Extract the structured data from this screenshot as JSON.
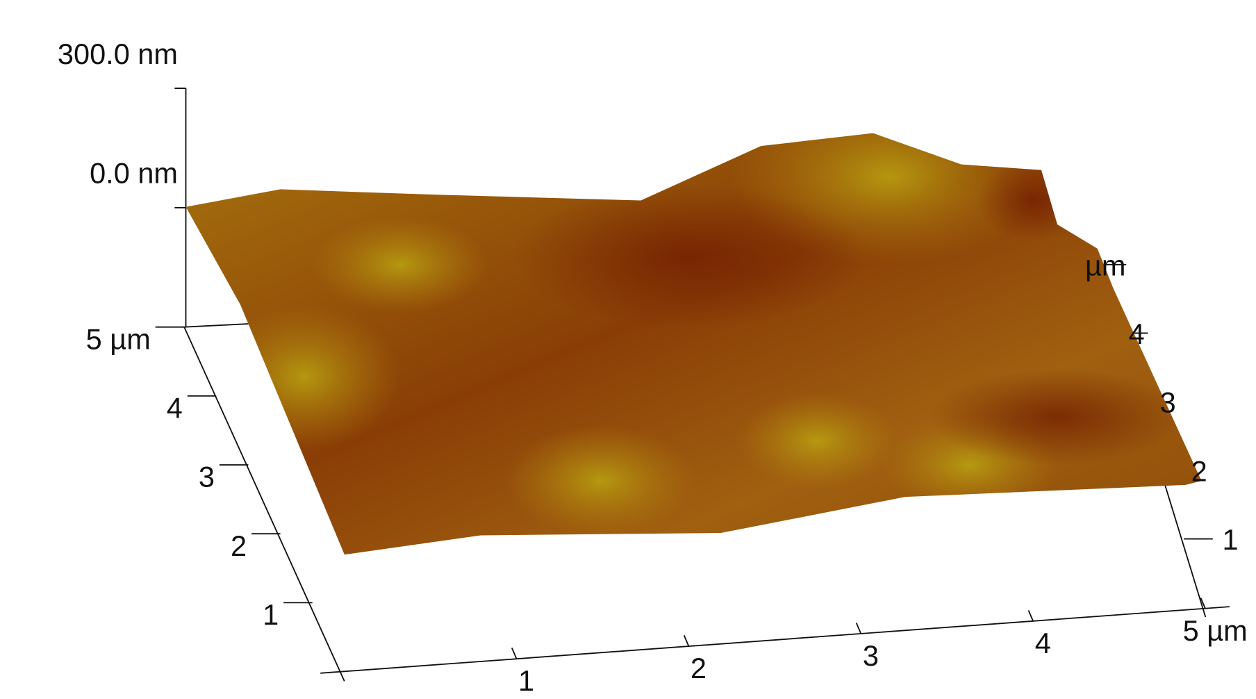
{
  "chart_data": {
    "type": "surface",
    "zlim": [
      -300,
      300
    ],
    "zticks": [
      {
        "value": 300,
        "label": "300.0 nm"
      },
      {
        "value": 0,
        "label": "0.0 nm"
      }
    ],
    "xlim": [
      0,
      5
    ],
    "xticks": [
      1,
      2,
      3,
      4,
      {
        "value": 5,
        "label": "5 µm"
      }
    ],
    "ylim": [
      0,
      5
    ],
    "yticks": [
      1,
      2,
      3,
      4,
      {
        "value": 5,
        "label": "5 µm"
      }
    ],
    "y2lim": [
      0,
      5
    ],
    "y2ticks": [
      1,
      2,
      3,
      4,
      {
        "value": 5,
        "label": "µm"
      }
    ],
    "color": "#a86a10"
  }
}
